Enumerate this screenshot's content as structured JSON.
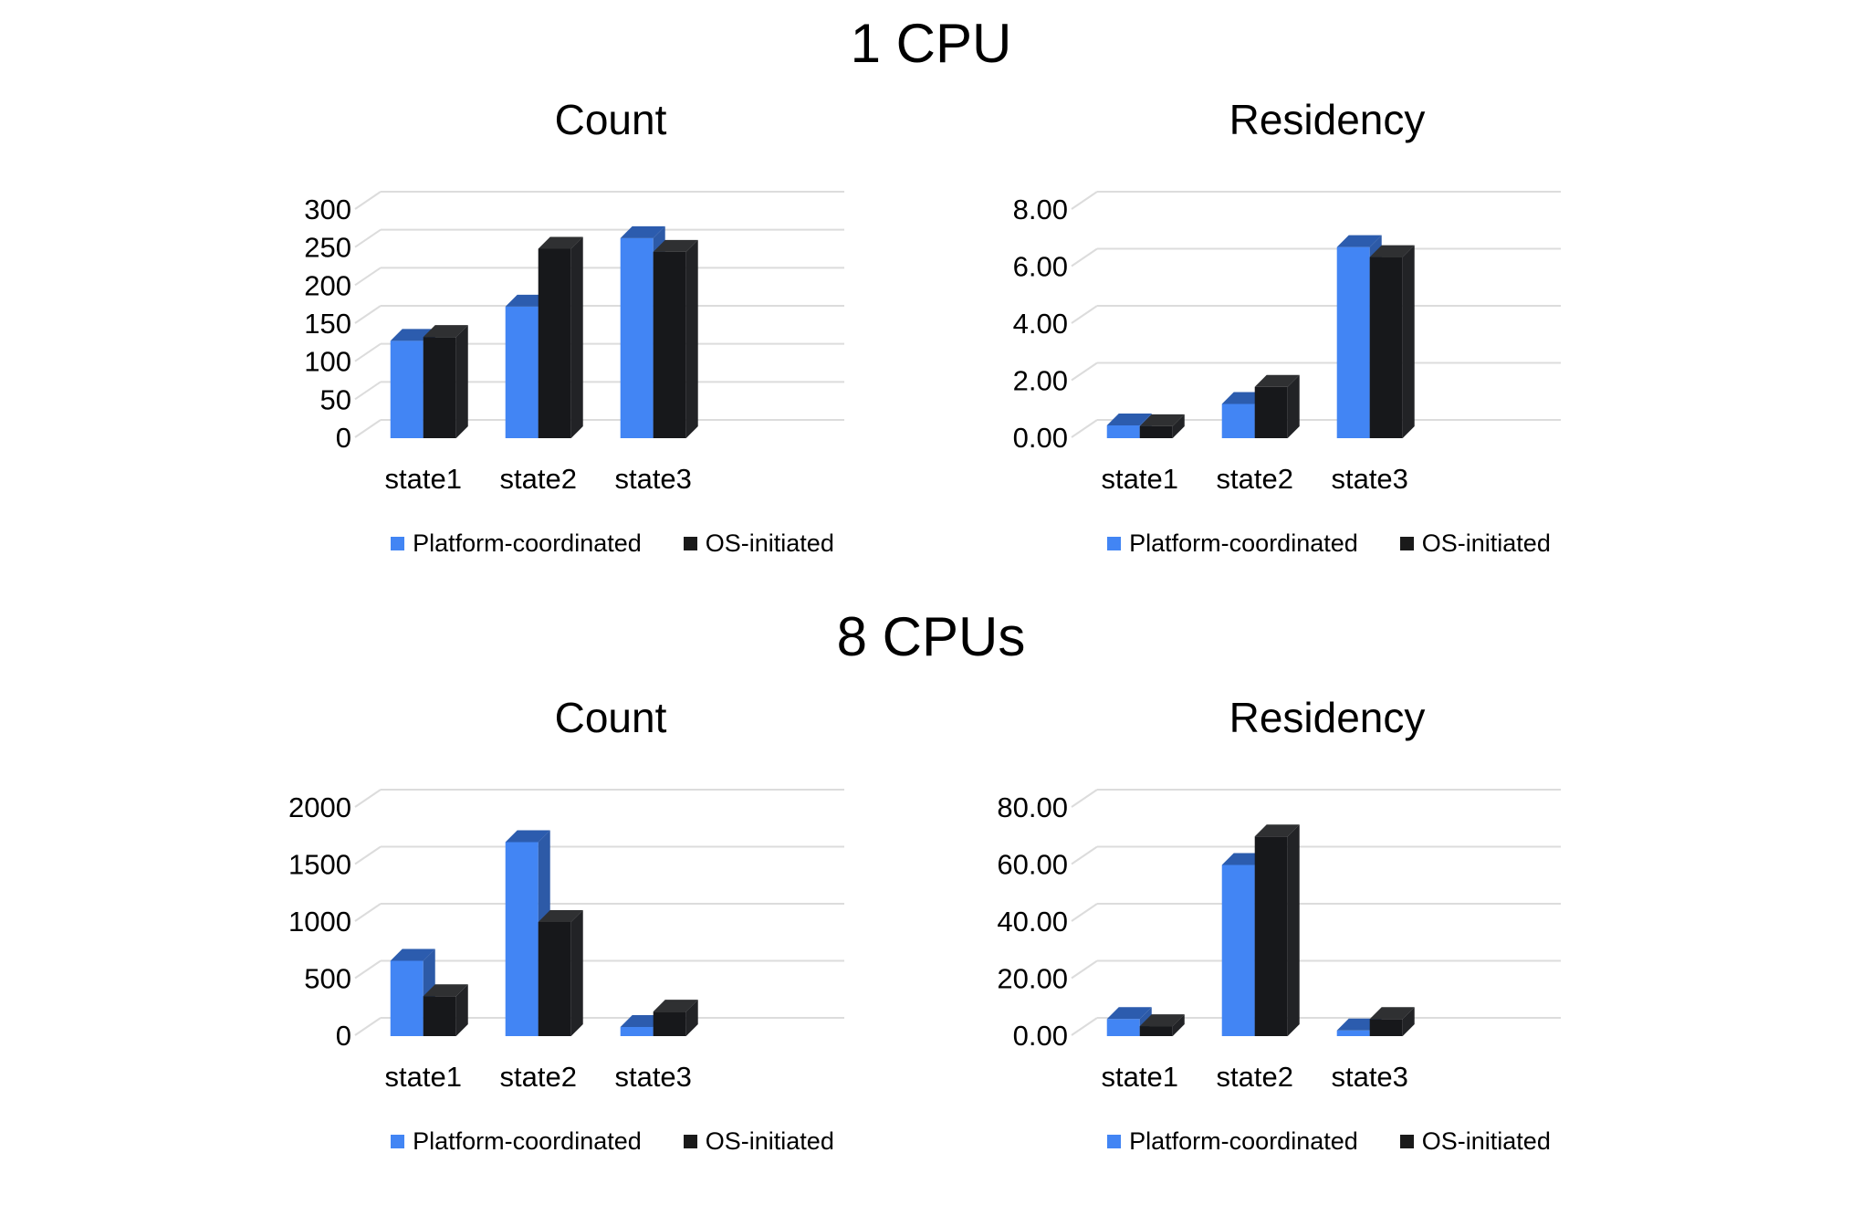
{
  "page": {
    "background": "#ffffff"
  },
  "sections": [
    {
      "title": "1 CPU"
    },
    {
      "title": "8 CPUs"
    }
  ],
  "legend": {
    "series1": "Platform-coordinated",
    "series2": "OS-initiated"
  },
  "colors": {
    "series1_front": "#4285F4",
    "series2_front": "#1A1A1A",
    "gridline": "#DCDCDC",
    "text": "#000000"
  },
  "chart_data": [
    {
      "type": "bar",
      "group": "1 CPU",
      "title": "Count",
      "categories": [
        "state1",
        "state2",
        "state3"
      ],
      "series": [
        {
          "name": "Platform-coordinated",
          "values": [
            128,
            173,
            263
          ],
          "colors": {
            "front": "#4285F4",
            "top": "#2C5CAE",
            "side": "#2D5AA7"
          }
        },
        {
          "name": "OS-initiated",
          "values": [
            133,
            249,
            245
          ],
          "colors": {
            "front": "#17181B",
            "top": "#2F3032",
            "side": "#222326"
          }
        }
      ],
      "xlabel": "",
      "ylabel": "",
      "ylim": [
        0,
        300
      ],
      "ytick": 50,
      "decimals": 0,
      "grid": true,
      "legend_position": "bottom",
      "style": "3d-column"
    },
    {
      "type": "bar",
      "group": "1 CPU",
      "title": "Residency",
      "categories": [
        "state1",
        "state2",
        "state3"
      ],
      "series": [
        {
          "name": "Platform-coordinated",
          "values": [
            0.45,
            1.2,
            6.7
          ],
          "colors": {
            "front": "#4285F4",
            "top": "#2C5CAE",
            "side": "#2D5AA7"
          }
        },
        {
          "name": "OS-initiated",
          "values": [
            0.42,
            1.8,
            6.35
          ],
          "colors": {
            "front": "#17181B",
            "top": "#2F3032",
            "side": "#222326"
          }
        }
      ],
      "xlabel": "",
      "ylabel": "",
      "ylim": [
        0,
        8
      ],
      "ytick": 2,
      "decimals": 2,
      "grid": true,
      "legend_position": "bottom",
      "style": "3d-column"
    },
    {
      "type": "bar",
      "group": "8 CPUs",
      "title": "Count",
      "categories": [
        "state1",
        "state2",
        "state3"
      ],
      "series": [
        {
          "name": "Platform-coordinated",
          "values": [
            660,
            1700,
            80
          ],
          "colors": {
            "front": "#4285F4",
            "top": "#2C5CAE",
            "side": "#2D5AA7"
          }
        },
        {
          "name": "OS-initiated",
          "values": [
            350,
            1000,
            215
          ],
          "colors": {
            "front": "#17181B",
            "top": "#2F3032",
            "side": "#222326"
          }
        }
      ],
      "xlabel": "",
      "ylabel": "",
      "ylim": [
        0,
        2000
      ],
      "ytick": 500,
      "decimals": 0,
      "grid": true,
      "legend_position": "bottom",
      "style": "3d-column"
    },
    {
      "type": "bar",
      "group": "8 CPUs",
      "title": "Residency",
      "categories": [
        "state1",
        "state2",
        "state3"
      ],
      "series": [
        {
          "name": "Platform-coordinated",
          "values": [
            6,
            60,
            2
          ],
          "colors": {
            "front": "#4285F4",
            "top": "#2C5CAE",
            "side": "#2D5AA7"
          }
        },
        {
          "name": "OS-initiated",
          "values": [
            3.5,
            70,
            6
          ],
          "colors": {
            "front": "#17181B",
            "top": "#2F3032",
            "side": "#222326"
          }
        }
      ],
      "xlabel": "",
      "ylabel": "",
      "ylim": [
        0,
        80
      ],
      "ytick": 20,
      "decimals": 2,
      "grid": true,
      "legend_position": "bottom",
      "style": "3d-column"
    }
  ]
}
